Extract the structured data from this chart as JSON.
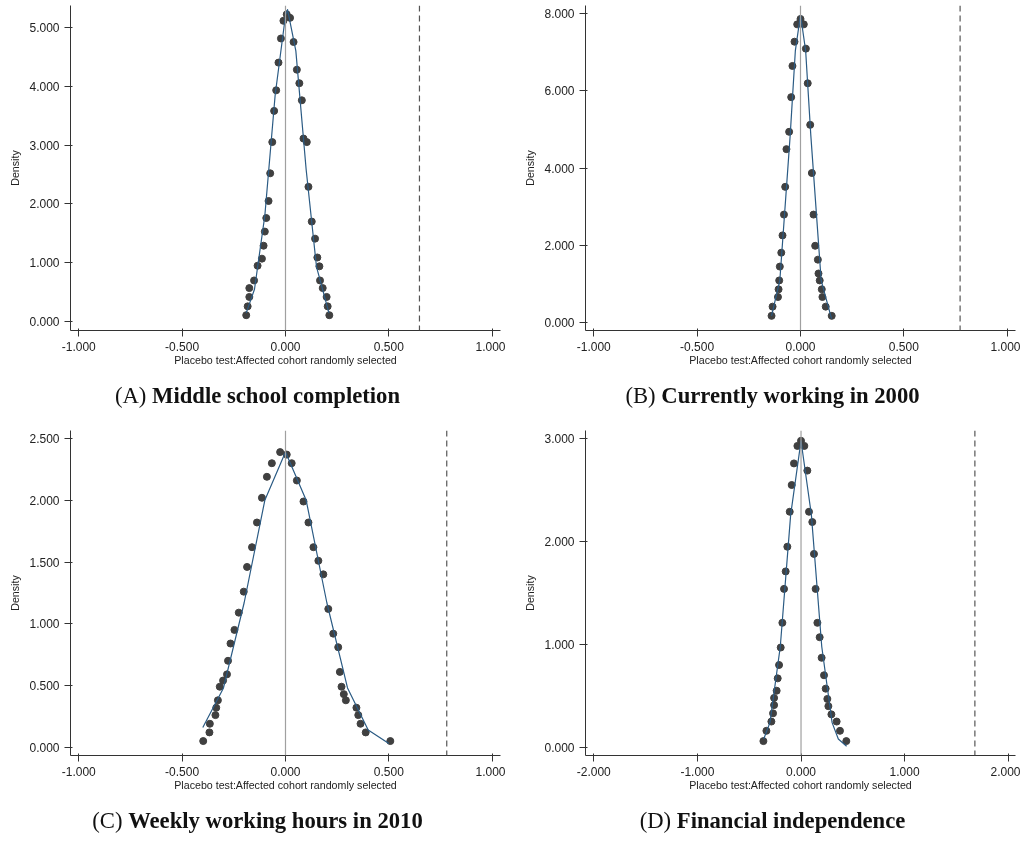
{
  "chart_data": [
    {
      "type": "scatter",
      "title": "(A) Middle school completion",
      "xlabel": "Placebo test:Affected cohort randomly selected",
      "ylabel": "Density",
      "marker": "circle",
      "xlim": [
        -1.04,
        1.04
      ],
      "ylim": [
        -0.15,
        5.37
      ],
      "xticks": [
        {
          "value": -1,
          "label": "-1.000"
        },
        {
          "value": -0.5,
          "label": "-0.500"
        },
        {
          "value": 0,
          "label": "0.000"
        },
        {
          "value": 0.5,
          "label": "0.500"
        },
        {
          "value": 1,
          "label": "1.000"
        }
      ],
      "yticks": [
        {
          "value": 0,
          "label": "0.000"
        },
        {
          "value": 1,
          "label": "1.000"
        },
        {
          "value": 2,
          "label": "2.000"
        },
        {
          "value": 3,
          "label": "3.000"
        },
        {
          "value": 4,
          "label": "4.000"
        },
        {
          "value": 5,
          "label": "5.000"
        }
      ],
      "ref_lines": [
        {
          "axis": "x",
          "value": 0,
          "color": "#a0a0a0",
          "line_style": "solid"
        },
        {
          "axis": "x",
          "value": 0.648,
          "color": "#555555",
          "line_style": "dashed"
        }
      ],
      "series": [
        {
          "color": "#404040",
          "x": [
            -0.19,
            -0.183,
            -0.175,
            -0.175,
            -0.152,
            -0.135,
            -0.114,
            -0.106,
            -0.1,
            -0.093,
            -0.082,
            -0.074,
            -0.064,
            -0.055,
            -0.045,
            -0.034,
            -0.022,
            -0.01,
            0.006,
            0.022,
            0.039,
            0.055,
            0.067,
            0.079,
            0.087,
            0.103,
            0.111,
            0.127,
            0.143,
            0.154,
            0.164,
            0.167,
            0.18,
            0.199,
            0.204,
            0.212
          ],
          "values": [
            0.11,
            0.26,
            0.42,
            0.57,
            0.7,
            0.95,
            1.07,
            1.29,
            1.53,
            1.76,
            2.05,
            2.52,
            3.05,
            3.58,
            3.93,
            4.4,
            4.81,
            5.11,
            5.22,
            5.16,
            4.75,
            4.28,
            4.05,
            3.76,
            3.11,
            3.05,
            2.29,
            1.7,
            1.41,
            1.09,
            0.94,
            0.7,
            0.57,
            0.42,
            0.26,
            0.11
          ]
        },
        {
          "type": "line",
          "marker": "none",
          "color": "#2b5b84",
          "x": [
            -0.19,
            -0.15,
            -0.1,
            -0.05,
            0,
            0.01,
            0.05,
            0.1,
            0.15,
            0.21
          ],
          "values": [
            0.15,
            0.55,
            1.8,
            3.85,
            5.2,
            5.3,
            4.6,
            2.58,
            0.93,
            0.15
          ]
        }
      ]
    },
    {
      "type": "scatter",
      "title": "(B) Currently working in 2000",
      "xlabel": "Placebo test:Affected cohort randomly selected",
      "ylabel": "Density",
      "marker": "circle",
      "xlim": [
        -1.04,
        1.04
      ],
      "ylim": [
        -0.22,
        8.22
      ],
      "xticks": [
        {
          "value": -1,
          "label": "-1.000"
        },
        {
          "value": -0.5,
          "label": "-0.500"
        },
        {
          "value": 0,
          "label": "0.000"
        },
        {
          "value": 0.5,
          "label": "0.500"
        },
        {
          "value": 1,
          "label": "1.000"
        }
      ],
      "yticks": [
        {
          "value": 0,
          "label": "0.000"
        },
        {
          "value": 2,
          "label": "2.000"
        },
        {
          "value": 4,
          "label": "4.000"
        },
        {
          "value": 6,
          "label": "6.000"
        },
        {
          "value": 8,
          "label": "8.000"
        }
      ],
      "ref_lines": [
        {
          "axis": "x",
          "value": 0,
          "color": "#a0a0a0",
          "line_style": "solid"
        },
        {
          "axis": "x",
          "value": 0.772,
          "color": "#555555",
          "line_style": "dashed"
        }
      ],
      "series": [
        {
          "color": "#404040",
          "x": [
            -0.14,
            -0.135,
            -0.109,
            -0.106,
            -0.103,
            -0.1,
            -0.093,
            -0.087,
            -0.08,
            -0.074,
            -0.068,
            -0.055,
            -0.045,
            -0.039,
            -0.029,
            -0.016,
            0,
            0.016,
            0.026,
            0.035,
            0.047,
            0.055,
            0.063,
            0.071,
            0.084,
            0.087,
            0.093,
            0.103,
            0.106,
            0.122,
            0.151
          ],
          "values": [
            0.16,
            0.4,
            0.65,
            0.85,
            1.08,
            1.44,
            1.8,
            2.25,
            2.79,
            3.51,
            4.49,
            4.94,
            5.84,
            6.65,
            7.28,
            7.73,
            7.87,
            7.73,
            7.1,
            6.2,
            5.12,
            3.87,
            2.79,
            1.98,
            1.62,
            1.26,
            1.08,
            0.85,
            0.65,
            0.4,
            0.16
          ]
        },
        {
          "type": "line",
          "marker": "none",
          "color": "#2b5b84",
          "x": [
            -0.14,
            -0.1,
            -0.05,
            -0.025,
            0,
            0.025,
            0.05,
            0.1,
            0.15
          ],
          "values": [
            0.16,
            1.08,
            4.84,
            7.04,
            7.98,
            7.04,
            4.84,
            1.08,
            0.09
          ]
        }
      ]
    },
    {
      "type": "scatter",
      "title": "(C) Weekly working hours in 2010",
      "xlabel": "Placebo test:Affected cohort randomly selected",
      "ylabel": "Density",
      "marker": "circle",
      "xlim": [
        -1.04,
        1.04
      ],
      "ylim": [
        -0.067,
        2.565
      ],
      "xticks": [
        {
          "value": -1,
          "label": "-1.000"
        },
        {
          "value": -0.5,
          "label": "-0.500"
        },
        {
          "value": 0,
          "label": "0.000"
        },
        {
          "value": 0.5,
          "label": "0.500"
        },
        {
          "value": 1,
          "label": "1.000"
        }
      ],
      "yticks": [
        {
          "value": 0,
          "label": "0.000"
        },
        {
          "value": 0.5,
          "label": "0.500"
        },
        {
          "value": 1,
          "label": "1.000"
        },
        {
          "value": 1.5,
          "label": "1.500"
        },
        {
          "value": 2,
          "label": "2.000"
        },
        {
          "value": 2.5,
          "label": "2.500"
        }
      ],
      "ref_lines": [
        {
          "axis": "x",
          "value": 0,
          "color": "#a0a0a0",
          "line_style": "solid"
        },
        {
          "axis": "x",
          "value": 0.78,
          "color": "#555555",
          "line_style": "dashed"
        }
      ],
      "series": [
        {
          "color": "#404040",
          "x": [
            -0.398,
            -0.368,
            -0.366,
            -0.339,
            -0.335,
            -0.327,
            -0.318,
            -0.302,
            -0.283,
            -0.278,
            -0.266,
            -0.247,
            -0.226,
            -0.202,
            -0.186,
            -0.162,
            -0.138,
            -0.114,
            -0.09,
            -0.066,
            -0.026,
            0.006,
            0.03,
            0.055,
            0.087,
            0.111,
            0.135,
            0.159,
            0.183,
            0.207,
            0.231,
            0.255,
            0.263,
            0.271,
            0.282,
            0.292,
            0.343,
            0.352,
            0.363,
            0.388,
            0.507
          ],
          "values": [
            0.05,
            0.12,
            0.19,
            0.26,
            0.32,
            0.38,
            0.49,
            0.54,
            0.59,
            0.7,
            0.84,
            0.95,
            1.09,
            1.26,
            1.46,
            1.62,
            1.82,
            2.02,
            2.19,
            2.3,
            2.39,
            2.37,
            2.3,
            2.16,
            1.99,
            1.82,
            1.62,
            1.51,
            1.4,
            1.12,
            0.92,
            0.81,
            0.61,
            0.49,
            0.43,
            0.38,
            0.32,
            0.26,
            0.19,
            0.12,
            0.05
          ]
        },
        {
          "type": "line",
          "marker": "none",
          "color": "#2b5b84",
          "x": [
            -0.4,
            -0.3,
            -0.2,
            -0.1,
            0,
            0.1,
            0.2,
            0.3,
            0.4,
            0.5
          ],
          "values": [
            0.16,
            0.48,
            1.17,
            2.0,
            2.39,
            2.0,
            1.17,
            0.48,
            0.14,
            0.03
          ]
        }
      ]
    },
    {
      "type": "scatter",
      "title": "(D) Financial independence",
      "xlabel": "Placebo test:Affected cohort randomly selected",
      "ylabel": "Density",
      "marker": "circle",
      "xlim": [
        -2.08,
        2.07
      ],
      "ylim": [
        -0.08,
        3.08
      ],
      "xticks": [
        {
          "value": -2,
          "label": "-2.000"
        },
        {
          "value": -1,
          "label": "-1.000"
        },
        {
          "value": 0,
          "label": "0.000"
        },
        {
          "value": 1,
          "label": "1.000"
        },
        {
          "value": 2,
          "label": "2.000"
        }
      ],
      "yticks": [
        {
          "value": 0,
          "label": "0.000"
        },
        {
          "value": 1,
          "label": "1.000"
        },
        {
          "value": 2,
          "label": "2.000"
        },
        {
          "value": 3,
          "label": "3.000"
        }
      ],
      "ref_lines": [
        {
          "axis": "x",
          "value": 0,
          "color": "#a0a0a0",
          "line_style": "solid"
        },
        {
          "axis": "x",
          "value": 1.678,
          "color": "#555555",
          "line_style": "dashed"
        }
      ],
      "series": [
        {
          "color": "#404040",
          "x": [
            -0.363,
            -0.334,
            -0.286,
            -0.27,
            -0.26,
            -0.26,
            -0.235,
            -0.225,
            -0.212,
            -0.196,
            -0.18,
            -0.164,
            -0.148,
            -0.132,
            -0.109,
            -0.09,
            -0.068,
            -0.035,
            0,
            0.032,
            0.061,
            0.077,
            0.109,
            0.125,
            0.141,
            0.158,
            0.18,
            0.199,
            0.222,
            0.238,
            0.254,
            0.264,
            0.293,
            0.344,
            0.376,
            0.437
          ],
          "values": [
            0.06,
            0.16,
            0.25,
            0.33,
            0.41,
            0.48,
            0.55,
            0.67,
            0.8,
            0.97,
            1.21,
            1.54,
            1.71,
            1.95,
            2.29,
            2.55,
            2.76,
            2.93,
            2.98,
            2.93,
            2.69,
            2.29,
            2.19,
            1.88,
            1.54,
            1.21,
            1.07,
            0.87,
            0.7,
            0.57,
            0.47,
            0.4,
            0.32,
            0.25,
            0.16,
            0.06
          ]
        },
        {
          "type": "line",
          "marker": "none",
          "color": "#2b5b84",
          "x": [
            -0.36,
            -0.3,
            -0.2,
            -0.1,
            0,
            0.1,
            0.2,
            0.3,
            0.36,
            0.44
          ],
          "values": [
            0.08,
            0.24,
            0.98,
            2.26,
            2.98,
            2.26,
            0.98,
            0.24,
            0.08,
            0.01
          ]
        }
      ]
    }
  ]
}
